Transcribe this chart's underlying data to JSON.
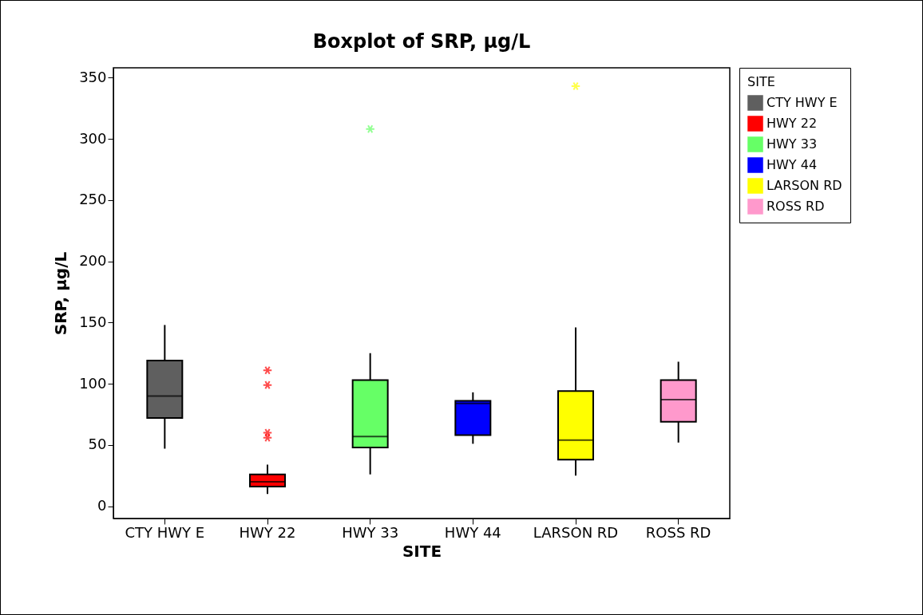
{
  "chart_data": {
    "type": "box",
    "title": "Boxplot of SRP, µg/L",
    "xlabel": "SITE",
    "ylabel": "SRP, µg/L",
    "legend_title": "SITE",
    "categories": [
      "CTY HWY E",
      "HWY 22",
      "HWY 33",
      "HWY 44",
      "LARSON RD",
      "ROSS RD"
    ],
    "series": [
      {
        "name": "CTY HWY E",
        "color": "#5f5f5f",
        "boxes": [
          {
            "low": 47,
            "q1": 72,
            "median": 90,
            "q3": 119,
            "high": 148
          },
          null,
          null,
          null,
          null,
          null
        ]
      },
      {
        "name": "HWY 22",
        "color": "#ff0000",
        "boxes": [
          null,
          {
            "low": 10,
            "q1": 16,
            "median": 20,
            "q3": 26,
            "high": 34,
            "outliers": [
              111,
              99,
              60,
              56
            ]
          },
          null,
          null,
          null,
          null
        ]
      },
      {
        "name": "HWY 33",
        "color": "#66ff66",
        "boxes": [
          null,
          null,
          {
            "low": 26,
            "q1": 48,
            "median": 57,
            "q3": 103,
            "high": 125,
            "outliers": [
              308
            ]
          },
          null,
          null,
          null
        ]
      },
      {
        "name": "HWY 44",
        "color": "#0000ff",
        "boxes": [
          null,
          null,
          null,
          {
            "low": 51,
            "q1": 58,
            "median": 84,
            "q3": 86,
            "high": 93
          },
          null,
          null
        ]
      },
      {
        "name": "LARSON RD",
        "color": "#ffff00",
        "boxes": [
          null,
          null,
          null,
          null,
          {
            "low": 25,
            "q1": 38,
            "median": 54,
            "q3": 94,
            "high": 146,
            "outliers": [
              343
            ]
          },
          null
        ]
      },
      {
        "name": "ROSS RD",
        "color": "#ff99cc",
        "boxes": [
          null,
          null,
          null,
          null,
          null,
          {
            "low": 52,
            "q1": 69,
            "median": 87,
            "q3": 103,
            "high": 118
          }
        ]
      }
    ],
    "ylim": [
      -10,
      358
    ],
    "yticks": [
      0,
      50,
      100,
      150,
      200,
      250,
      300,
      350
    ],
    "legend": "right",
    "marker": "cross"
  }
}
